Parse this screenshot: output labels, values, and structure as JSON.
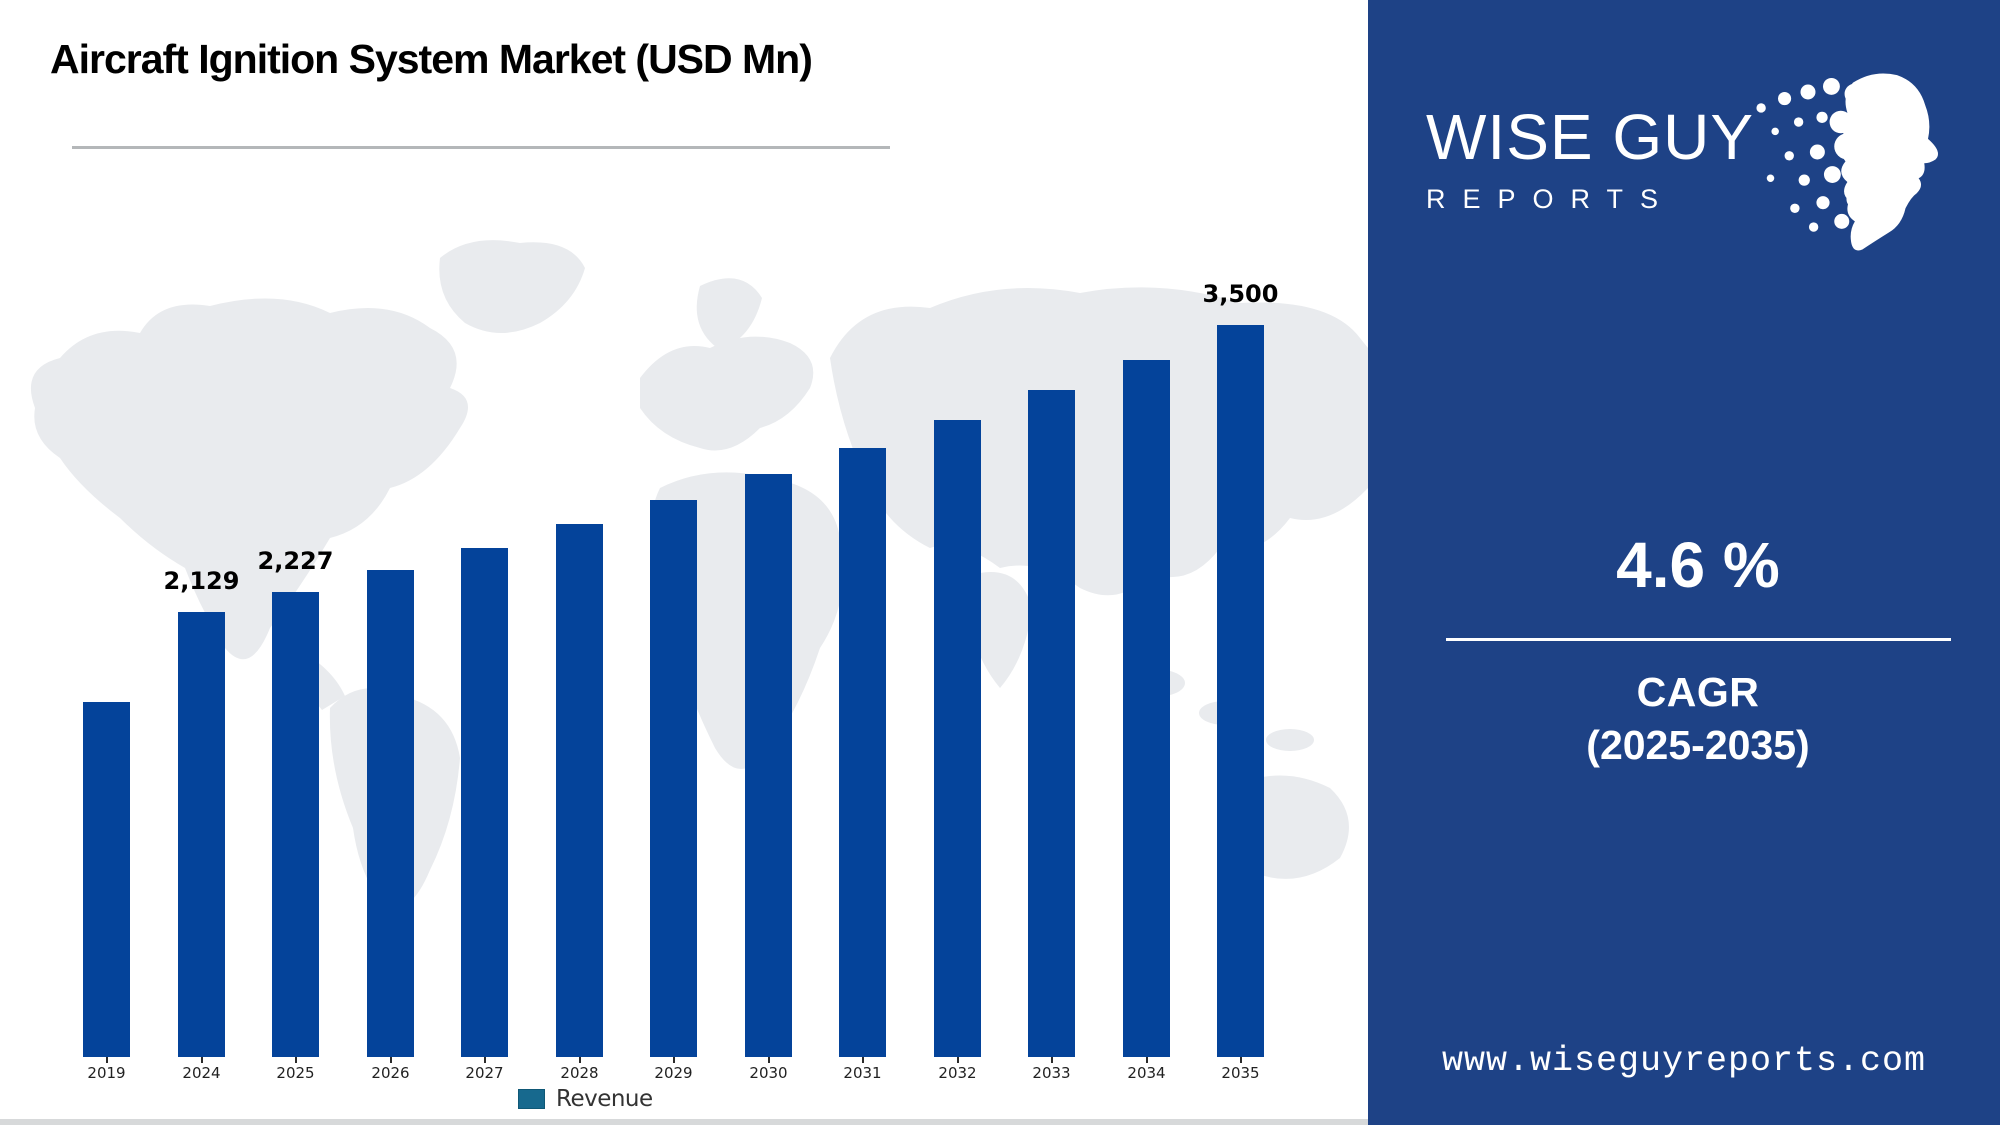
{
  "chart_data": {
    "type": "bar",
    "title": "Aircraft Ignition System Market (USD Mn)",
    "unit": "USD Mn",
    "categories": [
      "2019",
      "2024",
      "2025",
      "2026",
      "2027",
      "2028",
      "2029",
      "2030",
      "2031",
      "2032",
      "2033",
      "2034",
      "2035"
    ],
    "values": [
      1700,
      2129,
      2227,
      2329,
      2436,
      2548,
      2665,
      2788,
      2916,
      3050,
      3190,
      3337,
      3500
    ],
    "data_labels": [
      null,
      "2,129",
      "2,227",
      null,
      null,
      null,
      null,
      null,
      null,
      null,
      null,
      null,
      "3,500"
    ],
    "ylim": [
      0,
      3850
    ],
    "grid": false,
    "y_axis_visible": false,
    "legend": {
      "label": "Revenue",
      "position": "bottom"
    },
    "bar_color": "#04439A",
    "legend_swatch_color": "#17698E"
  },
  "panel": {
    "background_color": "#1E4286",
    "logo": {
      "line1": "WISE GUY",
      "line2": "REPORTS",
      "head_icon": "head-profile-dots-icon"
    },
    "cagr": {
      "value": "4.6 %",
      "label": "CAGR",
      "range": "(2025-2035)"
    },
    "website": "www.wiseguyreports.com"
  }
}
